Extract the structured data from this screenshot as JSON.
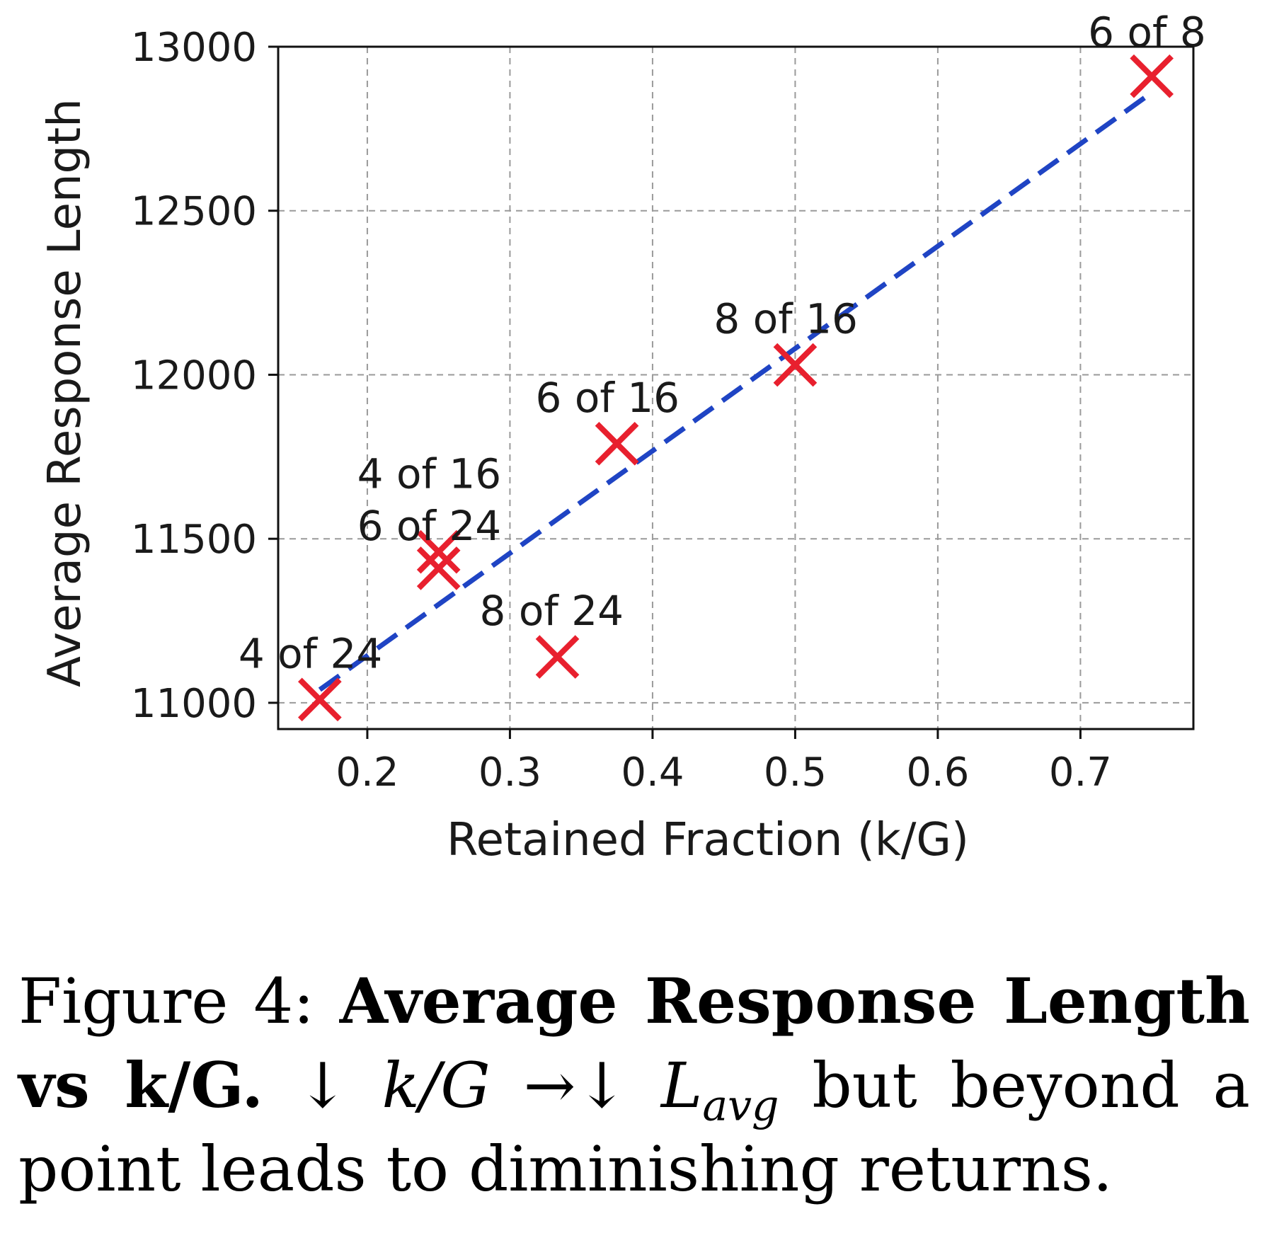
{
  "chart_data": {
    "type": "scatter",
    "xlabel": "Retained Fraction (k/G)",
    "ylabel": "Average Response Length",
    "xlim": [
      0.1375,
      0.7792
    ],
    "ylim": [
      10920,
      13000
    ],
    "xticks": [
      0.2,
      0.3,
      0.4,
      0.5,
      0.6,
      0.7
    ],
    "xtick_labels": [
      "0.2",
      "0.3",
      "0.4",
      "0.5",
      "0.6",
      "0.7"
    ],
    "yticks": [
      11000,
      11500,
      12000,
      12500,
      13000
    ],
    "ytick_labels": [
      "11000",
      "11500",
      "12000",
      "12500",
      "13000"
    ],
    "grid": true,
    "points": [
      {
        "label": "4 of 24",
        "x": 0.1667,
        "y": 11010
      },
      {
        "label": "4 of 16",
        "x": 0.25,
        "y": 11460
      },
      {
        "label": "6 of 24",
        "x": 0.25,
        "y": 11410
      },
      {
        "label": "8 of 24",
        "x": 0.3333,
        "y": 11140
      },
      {
        "label": "6 of 16",
        "x": 0.375,
        "y": 11790
      },
      {
        "label": "8 of 16",
        "x": 0.5,
        "y": 12030
      },
      {
        "label": "6 of 8",
        "x": 0.75,
        "y": 12910
      }
    ],
    "trend_line": {
      "x": [
        0.1667,
        0.75
      ],
      "y": [
        11040,
        12860
      ]
    },
    "colors": {
      "marker": "#e8202e",
      "trend": "#1f44c4",
      "grid": "#9a9a9a"
    }
  },
  "caption": {
    "prefix": "Figure 4:",
    "title": "Average Response Length vs k/G.",
    "math_1": "↓ k/G →↓ L",
    "math_sub": "avg",
    "rest": " but beyond a point leads to diminishing returns."
  }
}
